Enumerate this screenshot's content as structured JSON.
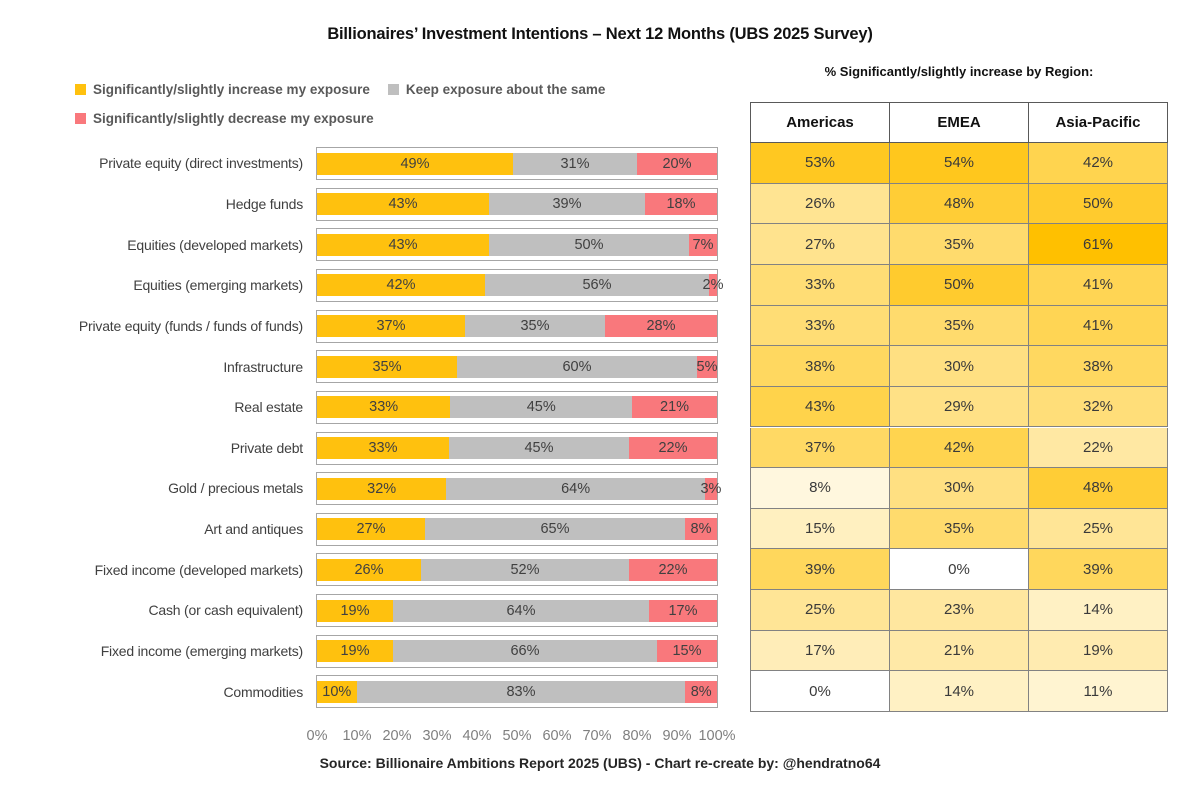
{
  "title": "Billionaires’ Investment Intentions – Next 12 Months (UBS 2025 Survey)",
  "region_header": "% Significantly/slightly increase by Region:",
  "legend": {
    "increase": "Significantly/slightly increase my exposure",
    "same": "Keep exposure about the same",
    "decrease": "Significantly/slightly decrease my exposure"
  },
  "colors": {
    "increase": "#FFC10E",
    "same": "#BFBFBF",
    "decrease": "#F9787C",
    "heatmap_min": "#FFFFFF",
    "heatmap_max": "#FFC000",
    "heatmap_max_value": 61,
    "bar_border": "#A6A6A6"
  },
  "source": "Source: Billionaire Ambitions Report 2025 (UBS) - Chart re-create by: @hendratno64",
  "chart_data": {
    "type": "bar",
    "stacked": true,
    "orientation": "horizontal",
    "title": "Billionaires’ Investment Intentions – Next 12 Months (UBS 2025 Survey)",
    "xlim": [
      0,
      100
    ],
    "x_ticks": [
      "0%",
      "10%",
      "20%",
      "30%",
      "40%",
      "50%",
      "60%",
      "70%",
      "80%",
      "90%",
      "100%"
    ],
    "legend_position": "top-left",
    "categories": [
      "Private equity (direct investments)",
      "Hedge funds",
      "Equities (developed markets)",
      "Equities (emerging markets)",
      "Private equity (funds / funds of funds)",
      "Infrastructure",
      "Real estate",
      "Private debt",
      "Gold / precious metals",
      "Art and antiques",
      "Fixed income (developed markets)",
      "Cash (or cash equivalent)",
      "Fixed income (emerging markets)",
      "Commodities"
    ],
    "series": [
      {
        "name": "Significantly/slightly increase my exposure",
        "values": [
          49,
          43,
          43,
          42,
          37,
          35,
          33,
          33,
          32,
          27,
          26,
          19,
          19,
          10
        ]
      },
      {
        "name": "Keep exposure about the same",
        "values": [
          31,
          39,
          50,
          56,
          35,
          60,
          45,
          45,
          64,
          65,
          52,
          64,
          66,
          83
        ]
      },
      {
        "name": "Significantly/slightly decrease my exposure",
        "values": [
          20,
          18,
          7,
          2,
          28,
          5,
          21,
          22,
          3,
          8,
          22,
          17,
          15,
          8
        ]
      }
    ],
    "region_table": {
      "title": "% Significantly/slightly increase by Region:",
      "columns": [
        "Americas",
        "EMEA",
        "Asia-Pacific"
      ],
      "rows": [
        [
          53,
          54,
          42
        ],
        [
          26,
          48,
          50
        ],
        [
          27,
          35,
          61
        ],
        [
          33,
          50,
          41
        ],
        [
          33,
          35,
          41
        ],
        [
          38,
          30,
          38
        ],
        [
          43,
          29,
          32
        ],
        [
          37,
          42,
          22
        ],
        [
          8,
          30,
          48
        ],
        [
          15,
          35,
          25
        ],
        [
          39,
          0,
          39
        ],
        [
          25,
          23,
          14
        ],
        [
          17,
          21,
          19
        ],
        [
          0,
          14,
          11
        ]
      ]
    }
  }
}
